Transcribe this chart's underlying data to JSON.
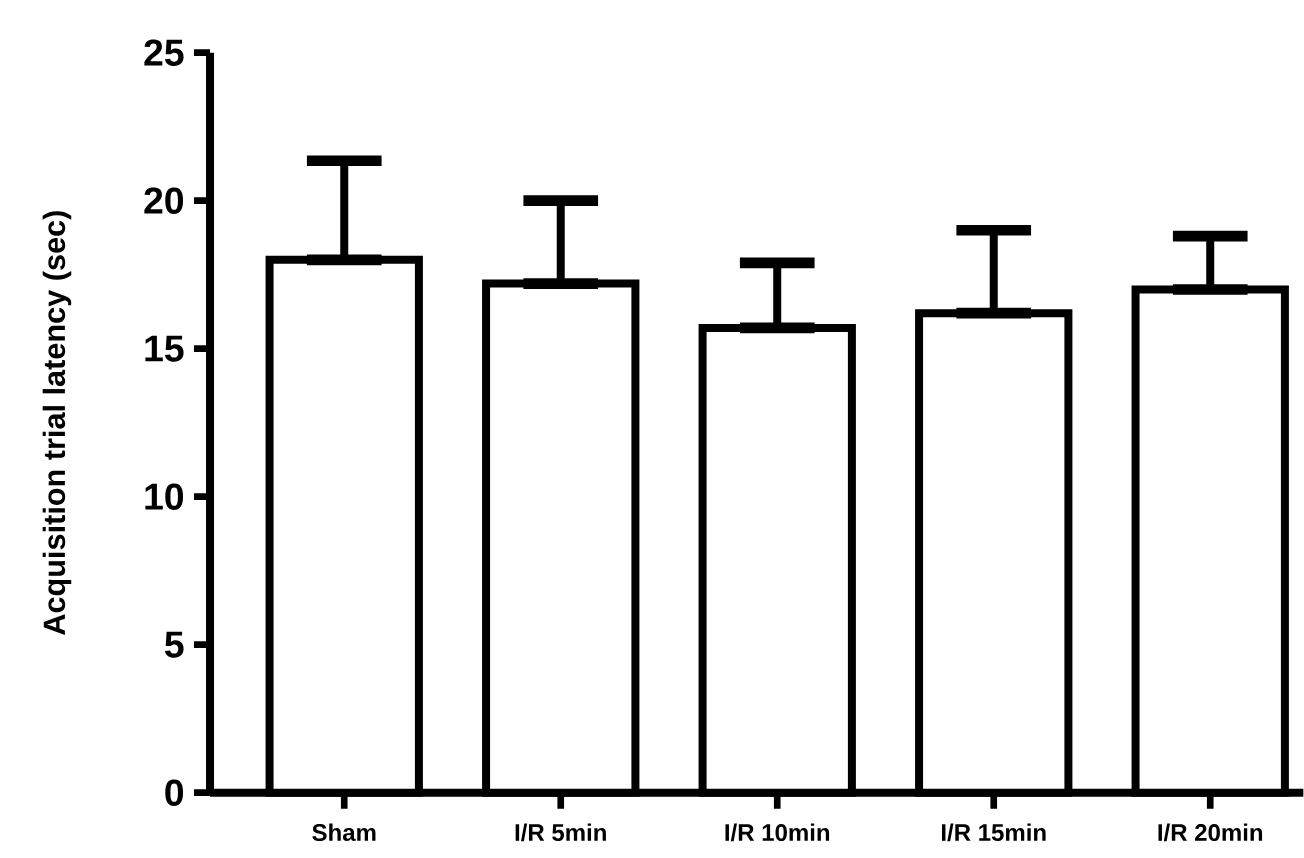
{
  "chart_data": {
    "type": "bar",
    "ylabel": "Acquisition trial latency (sec)",
    "categories": [
      "Sham",
      "I/R 5min",
      "I/R 10min",
      "I/R 15min",
      "I/R 20min"
    ],
    "values": [
      18.0,
      17.2,
      15.7,
      16.2,
      17.0
    ],
    "errors": [
      [
        18.0,
        21.35
      ],
      [
        17.2,
        20.0
      ],
      [
        15.7,
        17.9
      ],
      [
        16.2,
        19.0
      ],
      [
        17.0,
        18.8
      ]
    ],
    "colors": [
      "#000000",
      "#000000",
      "#000000",
      "#000000",
      "#000000"
    ],
    "ylim": [
      0,
      25
    ],
    "yticks": [
      0,
      5,
      10,
      15,
      20,
      25
    ]
  }
}
